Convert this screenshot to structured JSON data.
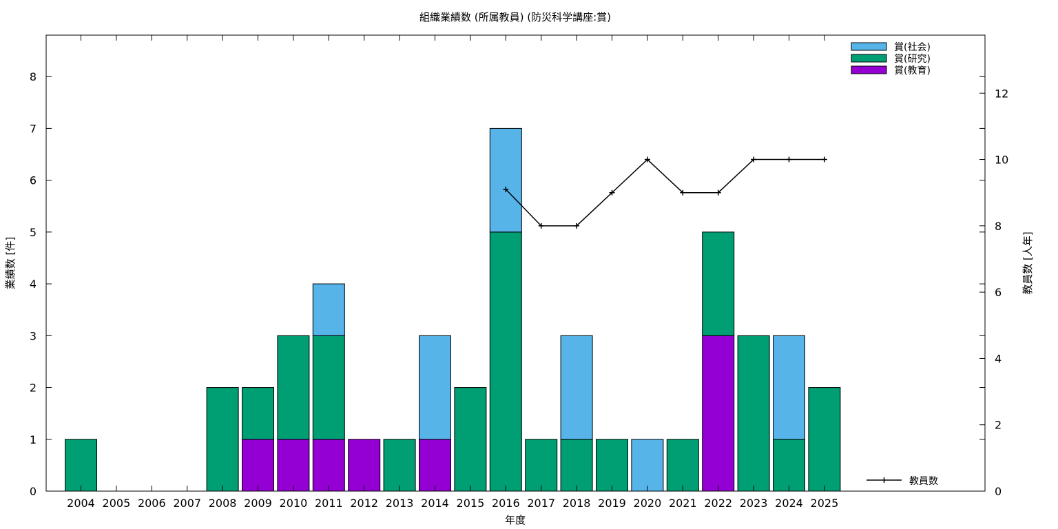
{
  "chart_data": {
    "type": "bar",
    "title": "組織業績数 (所属教員) (防災科学講座:賞)",
    "xlabel": "年度",
    "ylabel": "業績数 [件]",
    "y2label": "教員数 [人年]",
    "ylim": [
      0,
      8.8
    ],
    "y2lim": [
      0,
      13.75
    ],
    "yticks": [
      "0",
      "1",
      "2",
      "3",
      "4",
      "5",
      "6",
      "7",
      "8"
    ],
    "y2ticks": [
      "0",
      "2",
      "4",
      "6",
      "8",
      "10",
      "12"
    ],
    "categories": [
      "2004",
      "2005",
      "2006",
      "2007",
      "2008",
      "2009",
      "2010",
      "2011",
      "2012",
      "2013",
      "2014",
      "2015",
      "2016",
      "2017",
      "2018",
      "2019",
      "2020",
      "2021",
      "2022",
      "2023",
      "2024",
      "2025"
    ],
    "stacked": true,
    "series": [
      {
        "name": "賞(教育)",
        "color": "#9400d3",
        "values": [
          0,
          0,
          0,
          0,
          0,
          1,
          1,
          1,
          1,
          0,
          1,
          0,
          0,
          0,
          0,
          0,
          0,
          0,
          3,
          0,
          0,
          0
        ]
      },
      {
        "name": "賞(研究)",
        "color": "#009e73",
        "values": [
          1,
          0,
          0,
          0,
          2,
          1,
          2,
          2,
          0,
          1,
          0,
          2,
          5,
          1,
          1,
          1,
          0,
          1,
          2,
          3,
          1,
          2
        ]
      },
      {
        "name": "賞(社会)",
        "color": "#56b4e9",
        "values": [
          0,
          0,
          0,
          0,
          0,
          0,
          0,
          1,
          0,
          0,
          2,
          0,
          2,
          0,
          2,
          0,
          1,
          0,
          0,
          0,
          2,
          0
        ]
      }
    ],
    "line_series": {
      "name": "教員数",
      "axis": "right",
      "color": "#000000",
      "values": [
        null,
        null,
        null,
        null,
        null,
        null,
        null,
        null,
        null,
        null,
        null,
        null,
        9.1,
        8,
        8,
        9,
        10,
        9,
        9,
        10,
        10,
        10
      ]
    },
    "legend_position": "top-right",
    "line_legend_position": "bottom-right",
    "grid": false
  }
}
